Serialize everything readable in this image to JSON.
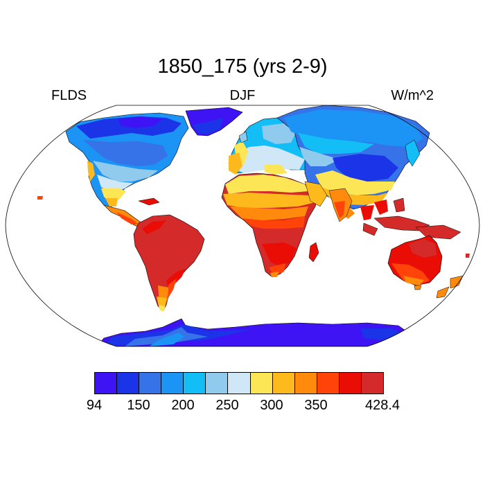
{
  "header": {
    "title": "1850_175 (yrs 2-9)",
    "left_label": "FLDS",
    "center_label": "DJF",
    "right_label": "W/m^2"
  },
  "colorbar": {
    "colors": [
      "#3e14f5",
      "#1c34e8",
      "#3672e8",
      "#1b94f5",
      "#13bdf6",
      "#90cbee",
      "#cfe7f6",
      "#fde656",
      "#feba1c",
      "#ff8a0b",
      "#ff4309",
      "#ea0d06",
      "#d52a2a"
    ],
    "labels": [
      "94",
      "150",
      "200",
      "250",
      "300",
      "350",
      "428.4"
    ]
  },
  "map": {
    "ocean_color": "#ffffff",
    "land_fill": "continuous FLDS shading (W/m^2)"
  }
}
